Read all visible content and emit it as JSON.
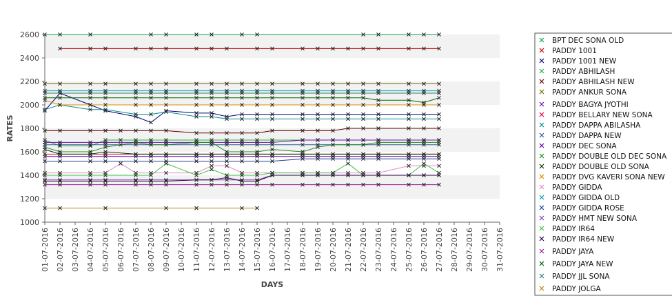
{
  "chart_data": {
    "type": "line",
    "title": "",
    "xlabel": "DAYS",
    "ylabel": "RATES",
    "ylim": [
      1000,
      2600
    ],
    "yticks": [
      1000,
      1200,
      1400,
      1600,
      1800,
      2000,
      2200,
      2400,
      2600
    ],
    "grid": "alternating horizontal bands",
    "legend_position": "right",
    "categories": [
      "01-07-2016",
      "02-07-2016",
      "03-07-2016",
      "04-07-2016",
      "05-07-2016",
      "06-07-2016",
      "07-07-2016",
      "08-07-2016",
      "09-07-2016",
      "10-07-2016",
      "11-07-2016",
      "12-07-2016",
      "13-07-2016",
      "14-07-2016",
      "15-07-2016",
      "16-07-2016",
      "17-07-2016",
      "18-07-2016",
      "19-07-2016",
      "20-07-2016",
      "21-07-2016",
      "22-07-2016",
      "23-07-2016",
      "24-07-2016",
      "25-07-2016",
      "26-07-2016",
      "27-07-2016",
      "28-07-2016",
      "29-07-2016",
      "30-07-2016",
      "31-07-2016"
    ],
    "series": [
      {
        "name": "BPT DEC SONA OLD",
        "color": "#00a651",
        "values": [
          2600,
          2600,
          null,
          2600,
          null,
          null,
          null,
          2600,
          2600,
          null,
          2600,
          2600,
          null,
          2600,
          2600,
          null,
          null,
          null,
          null,
          null,
          null,
          2600,
          2600,
          null,
          2600,
          2600,
          2600,
          null,
          null,
          null,
          null
        ]
      },
      {
        "name": "PADDY 1001",
        "color": "#c00000",
        "values": [
          null,
          2480,
          null,
          2480,
          2480,
          null,
          2480,
          2480,
          2480,
          null,
          2480,
          2480,
          2480,
          null,
          2480,
          2480,
          null,
          2480,
          2480,
          2480,
          2480,
          2480,
          2480,
          null,
          2480,
          2480,
          2480,
          null,
          null,
          null,
          null
        ]
      },
      {
        "name": "PADDY 1001 NEW",
        "color": "#000080",
        "values": [
          1950,
          2100,
          null,
          2000,
          1950,
          null,
          1900,
          1850,
          1950,
          null,
          1930,
          1930,
          1900,
          1920,
          1920,
          1920,
          null,
          1920,
          1920,
          1920,
          1920,
          1920,
          1920,
          null,
          1920,
          1920,
          1920,
          null,
          null,
          null,
          null
        ]
      },
      {
        "name": "PADDY ABHILASH",
        "color": "#20b040",
        "values": [
          1700,
          1650,
          null,
          1650,
          1700,
          1700,
          1700,
          1700,
          1700,
          null,
          1700,
          1700,
          1700,
          1700,
          1700,
          1700,
          null,
          1700,
          1700,
          1700,
          1700,
          1700,
          1700,
          null,
          1700,
          1700,
          1700,
          null,
          null,
          null,
          null
        ]
      },
      {
        "name": "PADDY ABHILASH NEW",
        "color": "#600000",
        "values": [
          1780,
          1780,
          null,
          1780,
          1780,
          1780,
          1780,
          1780,
          1780,
          null,
          1760,
          1760,
          1760,
          1760,
          1760,
          1780,
          null,
          1780,
          1780,
          1780,
          1800,
          1800,
          1800,
          null,
          1800,
          1800,
          1800,
          null,
          null,
          null,
          null
        ]
      },
      {
        "name": "PADDY ANKUR SONA",
        "color": "#6b6b00",
        "values": [
          2180,
          2180,
          null,
          2180,
          2180,
          null,
          2180,
          2180,
          2180,
          null,
          2180,
          2180,
          2180,
          2180,
          2180,
          2180,
          null,
          2180,
          2180,
          2180,
          2180,
          2180,
          2180,
          null,
          2180,
          2180,
          2180,
          null,
          null,
          null,
          null
        ]
      },
      {
        "name": "PADDY BAGYA JYOTHI",
        "color": "#6a0dad",
        "values": [
          1680,
          1680,
          null,
          1680,
          1680,
          null,
          1680,
          1680,
          1680,
          null,
          1680,
          1680,
          1680,
          1680,
          1680,
          1680,
          null,
          1700,
          1700,
          1700,
          1700,
          1700,
          1700,
          null,
          1700,
          1700,
          1700,
          null,
          null,
          null,
          null
        ]
      },
      {
        "name": "PADDY BELLARY NEW SONA",
        "color": "#e0003c",
        "values": [
          1580,
          1580,
          null,
          1580,
          1580,
          null,
          1580,
          1580,
          1580,
          null,
          1580,
          1580,
          1580,
          1580,
          1580,
          1580,
          null,
          1580,
          1580,
          1580,
          1580,
          1580,
          1580,
          null,
          1580,
          1580,
          1580,
          null,
          null,
          null,
          null
        ]
      },
      {
        "name": "PADDY DAPPA ABILASHA",
        "color": "#008b8b",
        "values": [
          1960,
          2000,
          null,
          1960,
          1960,
          null,
          1920,
          1920,
          1940,
          null,
          1900,
          1900,
          1880,
          1880,
          1880,
          1880,
          null,
          1880,
          1880,
          1880,
          1880,
          1880,
          1880,
          null,
          1880,
          1880,
          1880,
          null,
          null,
          null,
          null
        ]
      },
      {
        "name": "PADDY DAPPA NEW",
        "color": "#2e5e8e",
        "values": [
          1660,
          1660,
          null,
          1660,
          1660,
          null,
          1660,
          1660,
          1660,
          null,
          1660,
          1660,
          1660,
          1660,
          1660,
          1660,
          null,
          1660,
          1660,
          1660,
          1660,
          1660,
          1660,
          null,
          1660,
          1660,
          1660,
          null,
          null,
          null,
          null
        ]
      },
      {
        "name": "PADDY DEC SONA",
        "color": "#5500aa",
        "values": [
          1560,
          1560,
          null,
          1560,
          1560,
          null,
          1560,
          1560,
          1560,
          null,
          1560,
          1560,
          1560,
          1560,
          1560,
          1560,
          null,
          1560,
          1560,
          1560,
          1560,
          1560,
          1560,
          null,
          1560,
          1560,
          1560,
          null,
          null,
          null,
          null
        ]
      },
      {
        "name": "PADDY DOUBLE OLD DEC SONA",
        "color": "#1a8c1a",
        "values": [
          1640,
          1600,
          null,
          1600,
          1640,
          1660,
          1680,
          1660,
          1660,
          null,
          1680,
          1680,
          1600,
          1600,
          1600,
          1620,
          null,
          1600,
          1640,
          1660,
          1660,
          1660,
          1680,
          null,
          1680,
          1680,
          1680,
          null,
          null,
          null,
          null
        ]
      },
      {
        "name": "PADDY DOUBLE OLD SONA",
        "color": "#003300",
        "values": [
          1620,
          1580,
          null,
          1580,
          1600,
          null,
          1580,
          1580,
          1580,
          null,
          1580,
          1580,
          1580,
          1580,
          1580,
          1580,
          null,
          1580,
          1580,
          1580,
          1580,
          1580,
          1580,
          null,
          1580,
          1580,
          1580,
          null,
          null,
          null,
          null
        ]
      },
      {
        "name": "PADDY DVG KAVERI SONA NEW",
        "color": "#d98c00",
        "values": [
          2040,
          2000,
          null,
          2000,
          2000,
          null,
          2000,
          2000,
          2000,
          null,
          2000,
          2000,
          2000,
          2000,
          2000,
          2000,
          null,
          2000,
          2000,
          2000,
          2000,
          2000,
          2000,
          null,
          2000,
          2000,
          2000,
          null,
          null,
          null,
          null
        ]
      },
      {
        "name": "PADDY GIDDA",
        "color": "#e088c0",
        "values": [
          1420,
          1420,
          null,
          1420,
          1420,
          1500,
          1420,
          1420,
          1420,
          null,
          1420,
          1480,
          1480,
          1420,
          1420,
          1420,
          null,
          1420,
          1420,
          1420,
          1420,
          1420,
          1420,
          null,
          1480,
          1480,
          1480,
          null,
          null,
          null,
          null
        ]
      },
      {
        "name": "PADDY GIDDA OLD",
        "color": "#00a0a0",
        "values": [
          2120,
          2120,
          null,
          2120,
          2120,
          null,
          2120,
          2120,
          2120,
          null,
          2120,
          2120,
          2120,
          2120,
          2120,
          2120,
          null,
          2120,
          2120,
          2120,
          2120,
          2120,
          2120,
          null,
          2120,
          2120,
          2120,
          null,
          null,
          null,
          null
        ]
      },
      {
        "name": "PADDY GIDDA ROSE",
        "color": "#1f3f8f",
        "values": [
          1520,
          1520,
          null,
          1520,
          1520,
          null,
          1520,
          1520,
          1520,
          null,
          1520,
          1520,
          1520,
          1520,
          1520,
          1520,
          null,
          1540,
          1540,
          1540,
          1540,
          1540,
          1540,
          null,
          1540,
          1540,
          1540,
          null,
          null,
          null,
          null
        ]
      },
      {
        "name": "PADDY HMT NEW SONA",
        "color": "#7b3fb5",
        "values": [
          1360,
          1360,
          null,
          1360,
          1360,
          null,
          1360,
          1360,
          1360,
          null,
          1360,
          1360,
          1360,
          1360,
          1360,
          1400,
          null,
          1400,
          1400,
          1400,
          1400,
          1400,
          1400,
          null,
          1400,
          1400,
          1400,
          null,
          null,
          null,
          null
        ]
      },
      {
        "name": "PADDY IR64",
        "color": "#40c040",
        "values": [
          1400,
          1400,
          null,
          1400,
          1400,
          null,
          1400,
          1400,
          1500,
          null,
          1400,
          1450,
          1400,
          1400,
          1400,
          1420,
          null,
          1420,
          1420,
          1420,
          1500,
          1400,
          1400,
          null,
          1400,
          1500,
          1420,
          null,
          null,
          null,
          null
        ]
      },
      {
        "name": "PADDY IR64 NEW",
        "color": "#2a004a",
        "values": [
          1350,
          1350,
          null,
          1350,
          1350,
          null,
          1350,
          1350,
          1350,
          null,
          1360,
          1360,
          1380,
          1350,
          1350,
          1400,
          null,
          1400,
          1400,
          1400,
          1400,
          1400,
          1400,
          null,
          1400,
          1400,
          1400,
          null,
          null,
          null,
          null
        ]
      },
      {
        "name": "PADDY JAYA",
        "color": "#9a2090",
        "values": [
          1320,
          1320,
          null,
          1320,
          1320,
          null,
          1320,
          1320,
          1320,
          null,
          1320,
          1320,
          1320,
          1320,
          1320,
          1320,
          null,
          1320,
          1320,
          1320,
          1320,
          1320,
          1320,
          null,
          1320,
          1320,
          1320,
          null,
          null,
          null,
          null
        ]
      },
      {
        "name": "PADDY JAYA NEW",
        "color": "#006400",
        "values": [
          2060,
          2060,
          null,
          2060,
          2060,
          null,
          2060,
          2060,
          2060,
          null,
          2060,
          2060,
          2060,
          2060,
          2060,
          2060,
          null,
          2060,
          2060,
          2060,
          2060,
          2060,
          2040,
          null,
          2040,
          2020,
          2060,
          null,
          null,
          null,
          null
        ]
      },
      {
        "name": "PADDY JJL SONA",
        "color": "#2e7d6e",
        "values": [
          2100,
          2100,
          null,
          2100,
          2100,
          null,
          2100,
          2100,
          2100,
          null,
          2100,
          2100,
          2100,
          2100,
          2100,
          2100,
          null,
          2100,
          2100,
          2100,
          2100,
          2100,
          2100,
          null,
          2100,
          2100,
          2100,
          null,
          null,
          null,
          null
        ]
      },
      {
        "name": "PADDY JOLGA",
        "color": "#b8860b",
        "values": [
          1120,
          1120,
          null,
          null,
          1120,
          null,
          null,
          null,
          1120,
          null,
          1120,
          null,
          null,
          1120,
          1120,
          null,
          null,
          null,
          null,
          null,
          null,
          null,
          null,
          null,
          null,
          null,
          null,
          null,
          null,
          null,
          null
        ]
      }
    ]
  }
}
